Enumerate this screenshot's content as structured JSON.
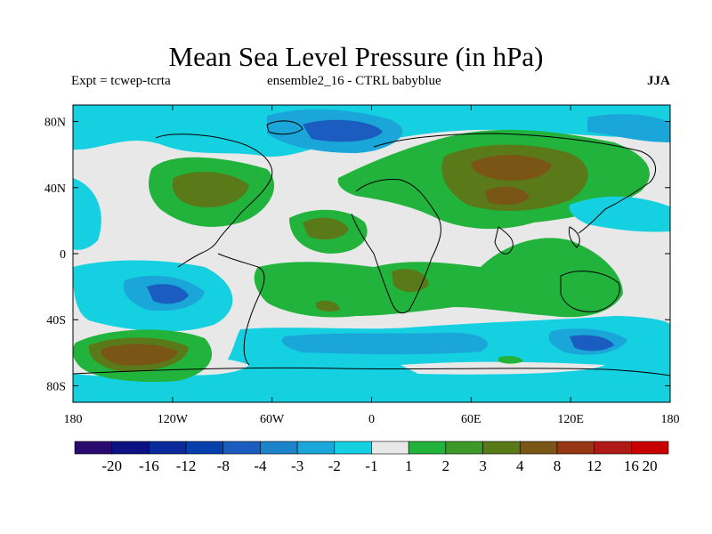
{
  "title": "Mean Sea Level Pressure (in hPa)",
  "subtitle_left": "Expt = tcwep-tcrta",
  "subtitle_center": "ensemble2_16 - CTRL babyblue",
  "subtitle_right": "JJA",
  "axes": {
    "lat_ticks": [
      "80N",
      "40N",
      "0",
      "40S",
      "80S"
    ],
    "lon_ticks": [
      "180",
      "120W",
      "60W",
      "0",
      "60E",
      "120E",
      "180"
    ]
  },
  "colorbar": {
    "labels": [
      "-20",
      "-16",
      "-12",
      "-8",
      "-4",
      "-3",
      "-2",
      "-1",
      "1",
      "2",
      "3",
      "4",
      "8",
      "12",
      "16",
      "20"
    ],
    "colors": [
      "#2a0a6e",
      "#0d1282",
      "#0a2a9c",
      "#0640ad",
      "#1a5cc0",
      "#1d84cc",
      "#1aa6d8",
      "#15d0e0",
      "#e8e8e8",
      "#22b33c",
      "#3e9a28",
      "#5a7a1a",
      "#7a5616",
      "#963614",
      "#b01a16",
      "#c80000"
    ]
  },
  "map_fields": {
    "background_color": "#e8e8e8",
    "ocean_light_color": "#15d0e0",
    "ocean_mid_color": "#1aa6d8",
    "ocean_dark_color": "#1a5cc0",
    "positive_color": "#22b33c",
    "positive_mid_color": "#5a7a1a",
    "positive_high_color": "#7a5616"
  }
}
